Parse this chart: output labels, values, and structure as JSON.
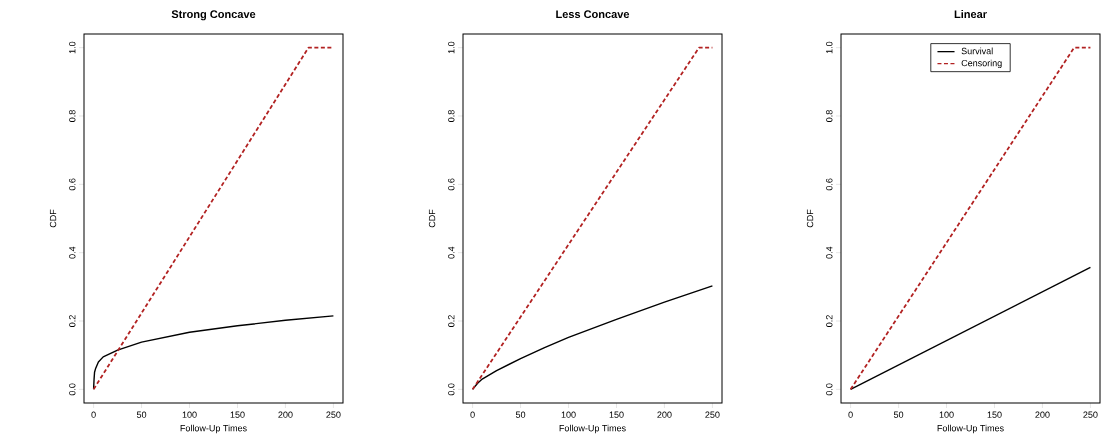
{
  "chart_data": [
    {
      "type": "line",
      "title": "Strong Concave",
      "xlabel": "Follow-Up Times",
      "ylabel": "CDF",
      "xlim": [
        -10,
        260
      ],
      "ylim": [
        -0.04,
        1.04
      ],
      "xticks": [
        0,
        50,
        100,
        150,
        200,
        250
      ],
      "yticks": [
        {
          "value": 0,
          "label": "0.0"
        },
        {
          "value": 0.2,
          "label": "0.2"
        },
        {
          "value": 0.4,
          "label": "0.4"
        },
        {
          "value": 0.6,
          "label": "0.6"
        },
        {
          "value": 0.8,
          "label": "0.8"
        },
        {
          "value": 1,
          "label": "1.0"
        }
      ],
      "series": [
        {
          "color": "#000000",
          "line_style": "solid",
          "x": [
            0,
            0.5,
            1,
            2,
            5,
            10,
            25,
            50,
            100,
            150,
            200,
            250
          ],
          "values": [
            0,
            0.03,
            0.05,
            0.06,
            0.08,
            0.095,
            0.115,
            0.138,
            0.167,
            0.186,
            0.202,
            0.215
          ]
        },
        {
          "color": "#b22222",
          "line_style": "dashed",
          "x": [
            0,
            224,
            250
          ],
          "values": [
            0,
            1,
            1
          ]
        }
      ]
    },
    {
      "type": "line",
      "title": "Less Concave",
      "xlabel": "Follow-Up Times",
      "ylabel": "CDF",
      "xlim": [
        -10,
        260
      ],
      "ylim": [
        -0.04,
        1.04
      ],
      "xticks": [
        0,
        50,
        100,
        150,
        200,
        250
      ],
      "yticks": [
        {
          "value": 0,
          "label": "0.0"
        },
        {
          "value": 0.2,
          "label": "0.2"
        },
        {
          "value": 0.4,
          "label": "0.4"
        },
        {
          "value": 0.6,
          "label": "0.6"
        },
        {
          "value": 0.8,
          "label": "0.8"
        },
        {
          "value": 1,
          "label": "1.0"
        }
      ],
      "series": [
        {
          "color": "#000000",
          "line_style": "solid",
          "x": [
            0,
            5,
            10,
            25,
            50,
            75,
            100,
            150,
            200,
            250
          ],
          "values": [
            0,
            0.017,
            0.03,
            0.055,
            0.09,
            0.122,
            0.152,
            0.205,
            0.255,
            0.303
          ]
        },
        {
          "color": "#b22222",
          "line_style": "dashed",
          "x": [
            0,
            236,
            250
          ],
          "values": [
            0,
            1,
            1
          ]
        }
      ]
    },
    {
      "type": "line",
      "title": "Linear",
      "xlabel": "Follow-Up Times",
      "ylabel": "CDF",
      "xlim": [
        -10,
        260
      ],
      "ylim": [
        -0.04,
        1.04
      ],
      "xticks": [
        0,
        50,
        100,
        150,
        200,
        250
      ],
      "yticks": [
        {
          "value": 0,
          "label": "0.0"
        },
        {
          "value": 0.2,
          "label": "0.2"
        },
        {
          "value": 0.4,
          "label": "0.4"
        },
        {
          "value": 0.6,
          "label": "0.6"
        },
        {
          "value": 0.8,
          "label": "0.8"
        },
        {
          "value": 1,
          "label": "1.0"
        }
      ],
      "legend": "top",
      "series": [
        {
          "name": "Survival",
          "color": "#000000",
          "line_style": "solid",
          "x": [
            0,
            250
          ],
          "values": [
            0,
            0.357
          ]
        },
        {
          "name": "Censoring",
          "color": "#b22222",
          "line_style": "dashed",
          "x": [
            0,
            233,
            250
          ],
          "values": [
            0,
            1,
            1
          ]
        }
      ]
    }
  ]
}
